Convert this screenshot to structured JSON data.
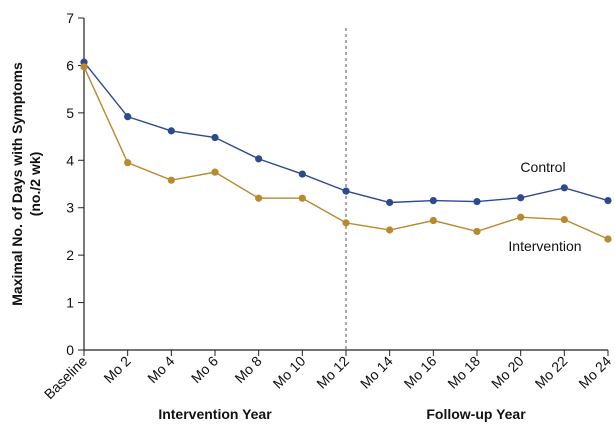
{
  "chart_data": {
    "type": "line",
    "ylabel_lines": [
      "Maximal No. of Days with Symptoms",
      "(no./2 wk)"
    ],
    "categories": [
      "Baseline",
      "Mo 2",
      "Mo 4",
      "Mo 6",
      "Mo 8",
      "Mo 10",
      "Mo 12",
      "Mo 14",
      "Mo 16",
      "Mo 18",
      "Mo 20",
      "Mo 22",
      "Mo 24"
    ],
    "ylim": [
      0,
      7
    ],
    "yticks": [
      0,
      1,
      2,
      3,
      4,
      5,
      6,
      7
    ],
    "grid": false,
    "divider_after_category": "Mo 12",
    "period_labels": [
      "Intervention Year",
      "Follow-up Year"
    ],
    "series": [
      {
        "name": "Control",
        "color": "#2e4a8f",
        "values": [
          6.07,
          4.92,
          4.62,
          4.48,
          4.03,
          3.71,
          3.35,
          3.11,
          3.15,
          3.13,
          3.21,
          3.42,
          3.15
        ]
      },
      {
        "name": "Intervention",
        "color": "#b88a2e",
        "values": [
          5.97,
          3.95,
          3.58,
          3.75,
          3.2,
          3.2,
          2.68,
          2.53,
          2.73,
          2.5,
          2.8,
          2.75,
          2.34
        ]
      }
    ]
  }
}
